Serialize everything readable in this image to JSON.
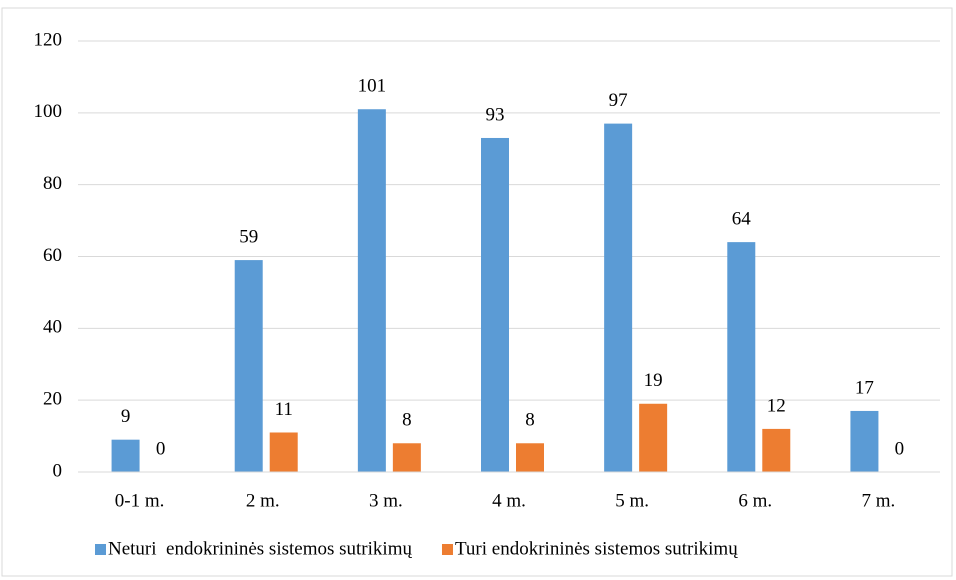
{
  "chart_data": {
    "type": "bar",
    "categories": [
      "0-1 m.",
      "2 m.",
      "3 m.",
      "4 m.",
      "5 m.",
      "6 m.",
      "7 m."
    ],
    "series": [
      {
        "name": "Neturi  endokrininės sistemos sutrikimų",
        "color": "#5b9bd5",
        "values": [
          9,
          59,
          101,
          93,
          97,
          64,
          17
        ]
      },
      {
        "name": "Turi endokrininės sistemos sutrikimų",
        "color": "#ed7d31",
        "values": [
          0,
          11,
          8,
          8,
          19,
          12,
          0
        ]
      }
    ],
    "ylim": [
      0,
      120
    ],
    "yticks": [
      0,
      20,
      40,
      60,
      80,
      100,
      120
    ],
    "grid": true,
    "legend": "bottom"
  }
}
